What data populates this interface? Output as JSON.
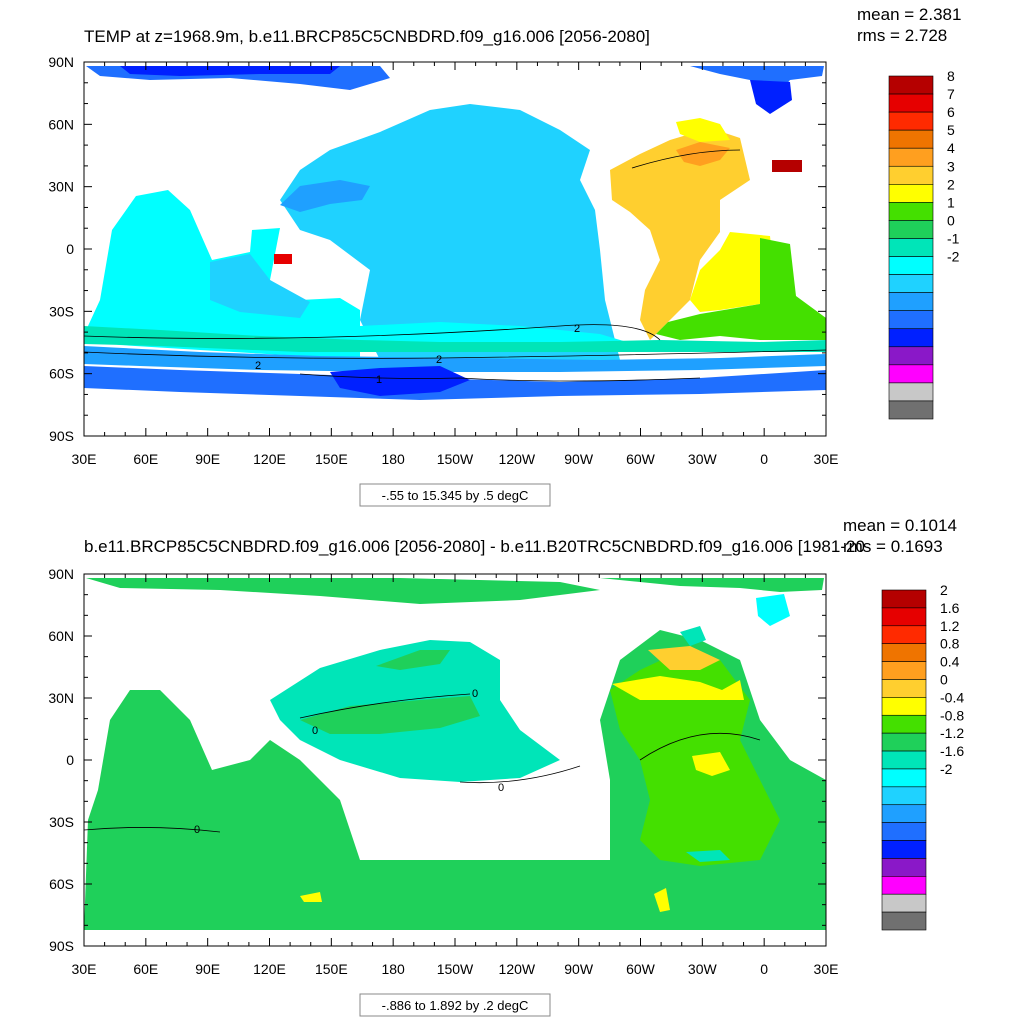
{
  "panels": [
    {
      "title": "TEMP at z=1968.9m, b.e11.BRCP85C5CNBDRD.f09_g16.006 [2056-2080]",
      "stats": [
        "mean = 2.381",
        "rms = 2.728"
      ],
      "caption": "-.55 to 15.345 by .5 degC",
      "contour_labels": [
        "2",
        "2",
        "2",
        "1"
      ],
      "colorbar": {
        "labels": [
          "8",
          "7",
          "6",
          "5",
          "4",
          "3",
          "2",
          "1",
          "0",
          "-1",
          "-2"
        ],
        "colors": [
          "#b50000",
          "#e60000",
          "#ff2a00",
          "#ef7400",
          "#ff9f1f",
          "#ffcf2f",
          "#ffff00",
          "#44e000",
          "#1fd05a",
          "#00e5b8",
          "#00ffff",
          "#1fd2ff",
          "#1fa0ff",
          "#1f6fff",
          "#0020ff",
          "#8a18c8",
          "#ff00ff",
          "#c8c8c8",
          "#707070"
        ]
      }
    },
    {
      "title": "b.e11.BRCP85C5CNBDRD.f09_g16.006 [2056-2080] - b.e11.B20TRC5CNBDRD.f09_g16.006 [1981-20",
      "stats": [
        "mean = 0.1014",
        "rms = 0.1693"
      ],
      "caption": "-.886 to 1.892 by .2 degC",
      "contour_labels": [
        "0",
        "0",
        "0",
        "0"
      ],
      "colorbar": {
        "labels": [
          "2",
          "1.6",
          "1.2",
          "0.8",
          "0.4",
          "0",
          "-0.4",
          "-0.8",
          "-1.2",
          "-1.6",
          "-2"
        ],
        "colors": [
          "#b50000",
          "#e60000",
          "#ff2a00",
          "#ef7400",
          "#ff9f1f",
          "#ffcf2f",
          "#ffff00",
          "#44e000",
          "#1fd05a",
          "#00e5b8",
          "#00ffff",
          "#1fd2ff",
          "#1fa0ff",
          "#1f6fff",
          "#0020ff",
          "#8a18c8",
          "#ff00ff",
          "#c8c8c8",
          "#707070"
        ]
      }
    }
  ],
  "chart_data": [
    {
      "type": "heatmap",
      "title": "TEMP at z=1968.9m, b.e11.BRCP85C5CNBDRD.f09_g16.006 [2056-2080]",
      "subtitle": "mean = 2.381 rms = 2.728",
      "x_ticks": [
        "30E",
        "60E",
        "90E",
        "120E",
        "150E",
        "180",
        "150W",
        "120W",
        "90W",
        "60W",
        "30W",
        "0",
        "30E"
      ],
      "y_ticks": [
        "90N",
        "60N",
        "30N",
        "0",
        "30S",
        "60S",
        "90S"
      ],
      "xlim": [
        30,
        390
      ],
      "ylim": [
        -90,
        90
      ],
      "contour_range": "-.55 to 15.345 by .5 degC",
      "colorbar_levels": [
        8,
        7,
        6,
        5,
        4,
        3,
        2,
        1,
        0,
        -1,
        -2
      ],
      "mean": 2.381,
      "rms": 2.728
    },
    {
      "type": "heatmap",
      "title": "b.e11.BRCP85C5CNBDRD.f09_g16.006 [2056-2080] - b.e11.B20TRC5CNBDRD.f09_g16.006 [1981-20",
      "subtitle": "mean = 0.1014 rms = 0.1693",
      "x_ticks": [
        "30E",
        "60E",
        "90E",
        "120E",
        "150E",
        "180",
        "150W",
        "120W",
        "90W",
        "60W",
        "30W",
        "0",
        "30E"
      ],
      "y_ticks": [
        "90N",
        "60N",
        "30N",
        "0",
        "30S",
        "60S",
        "90S"
      ],
      "xlim": [
        30,
        390
      ],
      "ylim": [
        -90,
        90
      ],
      "contour_range": "-.886 to 1.892 by .2 degC",
      "colorbar_levels": [
        2,
        1.6,
        1.2,
        0.8,
        0.4,
        0,
        -0.4,
        -0.8,
        -1.2,
        -1.6,
        -2
      ],
      "mean": 0.1014,
      "rms": 0.1693
    }
  ]
}
